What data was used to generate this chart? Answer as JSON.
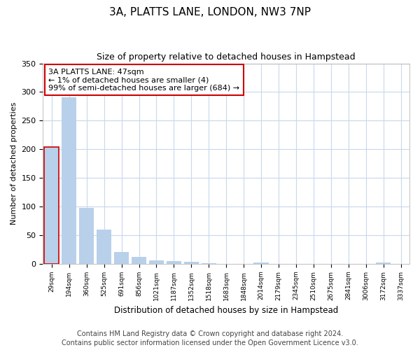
{
  "title": "3A, PLATTS LANE, LONDON, NW3 7NP",
  "subtitle": "Size of property relative to detached houses in Hampstead",
  "xlabel": "Distribution of detached houses by size in Hampstead",
  "ylabel": "Number of detached properties",
  "bar_color": "#b8d0ea",
  "highlight_color": "#cc0000",
  "annotation_text": "3A PLATTS LANE: 47sqm\n← 1% of detached houses are smaller (4)\n99% of semi-detached houses are larger (684) →",
  "annotation_box_color": "#ffffff",
  "annotation_box_edge_color": "#cc0000",
  "highlight_bar_index": 0,
  "categories": [
    "29sqm",
    "194sqm",
    "360sqm",
    "525sqm",
    "691sqm",
    "856sqm",
    "1021sqm",
    "1187sqm",
    "1352sqm",
    "1518sqm",
    "1683sqm",
    "1848sqm",
    "2014sqm",
    "2179sqm",
    "2345sqm",
    "2510sqm",
    "2675sqm",
    "2841sqm",
    "3006sqm",
    "3172sqm",
    "3337sqm"
  ],
  "values": [
    204,
    291,
    97,
    60,
    20,
    12,
    6,
    5,
    4,
    1,
    0,
    0,
    2,
    0,
    0,
    0,
    0,
    0,
    0,
    2,
    0
  ],
  "ylim": [
    0,
    350
  ],
  "yticks": [
    0,
    50,
    100,
    150,
    200,
    250,
    300,
    350
  ],
  "footer": "Contains HM Land Registry data © Crown copyright and database right 2024.\nContains public sector information licensed under the Open Government Licence v3.0.",
  "background_color": "#ffffff",
  "plot_bg_color": "#ffffff",
  "grid_color": "#c8d8ea",
  "title_fontsize": 11,
  "subtitle_fontsize": 9,
  "footer_fontsize": 7,
  "annotation_fontsize": 8
}
